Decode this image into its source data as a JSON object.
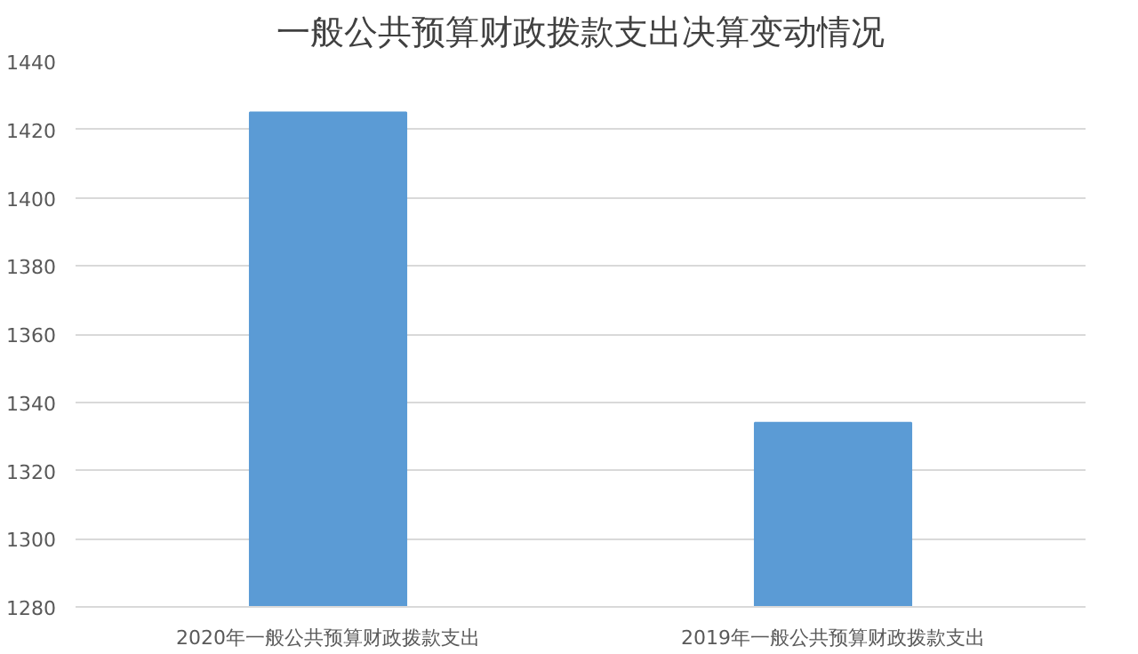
{
  "chart_data": {
    "type": "bar",
    "title": "一般公共预算财政拨款支出决算变动情况",
    "categories": [
      "2020年一般公共预算财政拨款支出",
      "2019年一般公共预算财政拨款支出"
    ],
    "values": [
      1425,
      1334
    ],
    "color": "#5b9bd5",
    "ylim": [
      1280,
      1440
    ],
    "yticks": [
      1280,
      1300,
      1320,
      1340,
      1360,
      1380,
      1400,
      1420,
      1440
    ],
    "grid": "y"
  }
}
